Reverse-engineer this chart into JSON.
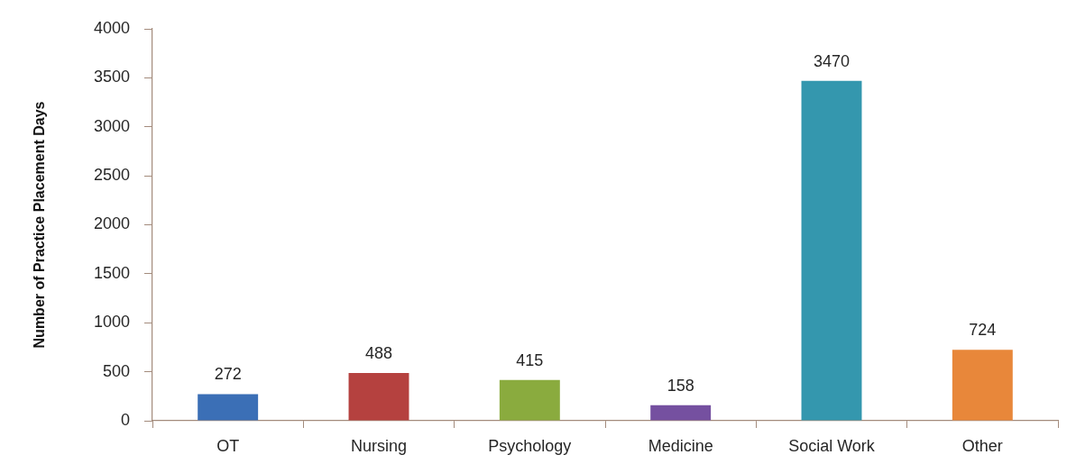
{
  "chart_data": {
    "type": "bar",
    "ylabel": "Number of Practice Placement Days",
    "categories": [
      "OT",
      "Nursing",
      "Psychology",
      "Medicine",
      "Social Work",
      "Other"
    ],
    "values": [
      272,
      488,
      415,
      158,
      3470,
      724
    ],
    "colors": [
      "#3b6fb6",
      "#b5413f",
      "#8aab3e",
      "#7550a0",
      "#3497ae",
      "#e8873a"
    ],
    "ylim": [
      0,
      4000
    ],
    "yticks": [
      0,
      500,
      1000,
      1500,
      2000,
      2500,
      3000,
      3500,
      4000
    ],
    "data_labels": true
  }
}
